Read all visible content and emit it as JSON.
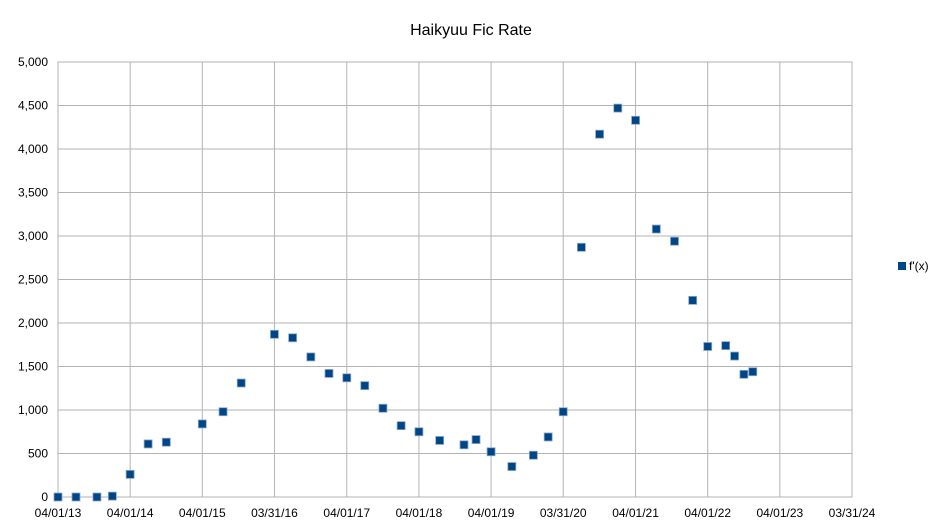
{
  "chart_data": {
    "type": "scatter",
    "title": "Haikyuu Fic Rate",
    "xlabel": "",
    "ylabel": "",
    "x_axis_type": "date",
    "xlim": [
      "2013-04-01",
      "2024-03-31"
    ],
    "x_ticks": [
      "2013-04-01",
      "2014-04-01",
      "2015-04-01",
      "2016-03-31",
      "2017-04-01",
      "2018-04-01",
      "2019-04-01",
      "2020-03-31",
      "2021-04-01",
      "2022-04-01",
      "2023-04-01",
      "2024-03-31"
    ],
    "x_tick_labels": [
      "04/01/13",
      "04/01/14",
      "04/01/15",
      "03/31/16",
      "04/01/17",
      "04/01/18",
      "04/01/19",
      "03/31/20",
      "04/01/21",
      "04/01/22",
      "04/01/23",
      "03/31/24"
    ],
    "ylim": [
      0,
      5000
    ],
    "y_ticks": [
      0,
      500,
      1000,
      1500,
      2000,
      2500,
      3000,
      3500,
      4000,
      4500,
      5000
    ],
    "y_tick_labels": [
      "0",
      "500",
      "1,000",
      "1,500",
      "2,000",
      "2,500",
      "3,000",
      "3,500",
      "4,000",
      "4,500",
      "5,000"
    ],
    "grid": true,
    "legend_position": "right",
    "series": [
      {
        "name": "f'(x)",
        "color": "#004586",
        "marker": "square",
        "points": [
          {
            "x": "2013-04-01",
            "y": 0
          },
          {
            "x": "2013-07-01",
            "y": 0
          },
          {
            "x": "2013-10-15",
            "y": 0
          },
          {
            "x": "2014-01-01",
            "y": 10
          },
          {
            "x": "2014-04-01",
            "y": 260
          },
          {
            "x": "2014-07-01",
            "y": 610
          },
          {
            "x": "2014-10-01",
            "y": 630
          },
          {
            "x": "2015-04-01",
            "y": 840
          },
          {
            "x": "2015-07-15",
            "y": 980
          },
          {
            "x": "2015-10-15",
            "y": 1310
          },
          {
            "x": "2016-03-31",
            "y": 1870
          },
          {
            "x": "2016-07-01",
            "y": 1830
          },
          {
            "x": "2016-10-01",
            "y": 1610
          },
          {
            "x": "2017-01-01",
            "y": 1420
          },
          {
            "x": "2017-04-01",
            "y": 1370
          },
          {
            "x": "2017-07-01",
            "y": 1280
          },
          {
            "x": "2017-10-01",
            "y": 1020
          },
          {
            "x": "2018-01-01",
            "y": 820
          },
          {
            "x": "2018-04-01",
            "y": 750
          },
          {
            "x": "2018-07-15",
            "y": 650
          },
          {
            "x": "2018-11-15",
            "y": 600
          },
          {
            "x": "2019-01-15",
            "y": 660
          },
          {
            "x": "2019-04-01",
            "y": 520
          },
          {
            "x": "2019-07-15",
            "y": 350
          },
          {
            "x": "2019-11-01",
            "y": 480
          },
          {
            "x": "2020-01-15",
            "y": 690
          },
          {
            "x": "2020-03-31",
            "y": 980
          },
          {
            "x": "2020-07-01",
            "y": 2870
          },
          {
            "x": "2020-10-01",
            "y": 4170
          },
          {
            "x": "2021-01-01",
            "y": 4470
          },
          {
            "x": "2021-04-01",
            "y": 4330
          },
          {
            "x": "2021-07-15",
            "y": 3080
          },
          {
            "x": "2021-10-15",
            "y": 2940
          },
          {
            "x": "2022-01-15",
            "y": 2260
          },
          {
            "x": "2022-04-01",
            "y": 1730
          },
          {
            "x": "2022-07-01",
            "y": 1740
          },
          {
            "x": "2022-08-15",
            "y": 1620
          },
          {
            "x": "2022-10-01",
            "y": 1410
          },
          {
            "x": "2022-11-15",
            "y": 1440
          }
        ]
      }
    ]
  }
}
